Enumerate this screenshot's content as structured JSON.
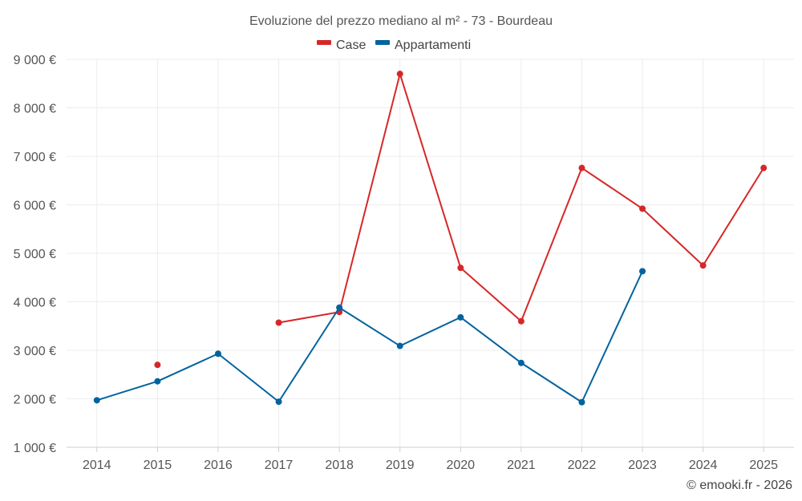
{
  "chart_data": {
    "type": "line",
    "title": "Evoluzione del prezzo mediano al m² - 73 - Bourdeau",
    "categories": [
      "2014",
      "2015",
      "2016",
      "2017",
      "2018",
      "2019",
      "2020",
      "2021",
      "2022",
      "2023",
      "2024",
      "2025"
    ],
    "ylim": [
      1000,
      9000
    ],
    "yticks": [
      1000,
      2000,
      3000,
      4000,
      5000,
      6000,
      7000,
      8000,
      9000
    ],
    "ytick_labels": [
      "1 000 €",
      "2 000 €",
      "3 000 €",
      "4 000 €",
      "5 000 €",
      "6 000 €",
      "7 000 €",
      "8 000 €",
      "9 000 €"
    ],
    "grid": true,
    "legend_position": "top-center",
    "series": [
      {
        "name": "Case",
        "color": "#d62728",
        "values": [
          null,
          2700,
          null,
          3570,
          3790,
          8700,
          4700,
          3600,
          6760,
          5920,
          4750,
          6760
        ]
      },
      {
        "name": "Appartamenti",
        "color": "#00639e",
        "values": [
          1970,
          2360,
          2930,
          1940,
          3880,
          3090,
          3680,
          2740,
          1930,
          4630,
          null,
          null
        ]
      }
    ],
    "credit": "© emooki.fr - 2026"
  }
}
